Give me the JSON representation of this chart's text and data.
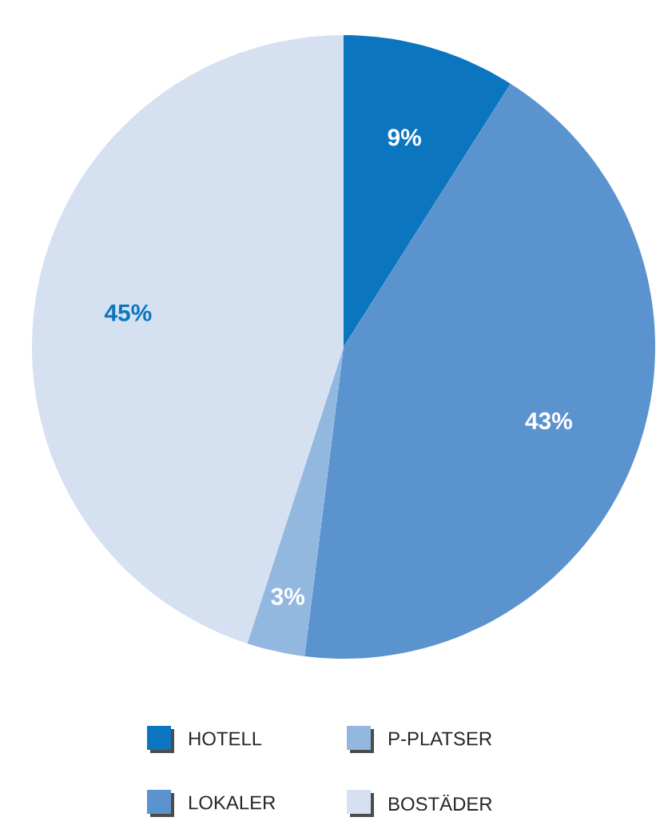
{
  "chart_data": {
    "type": "pie",
    "categories": [
      "HOTELL",
      "LOKALER",
      "P-PLATSER",
      "BOSTÄDER"
    ],
    "values": [
      9,
      43,
      3,
      45
    ],
    "colors": [
      "#0b76bf",
      "#5b93cf",
      "#93b8e0",
      "#d5e0f1"
    ],
    "value_labels": [
      "9%",
      "43%",
      "3%",
      "45%"
    ],
    "legend": "bottom"
  }
}
